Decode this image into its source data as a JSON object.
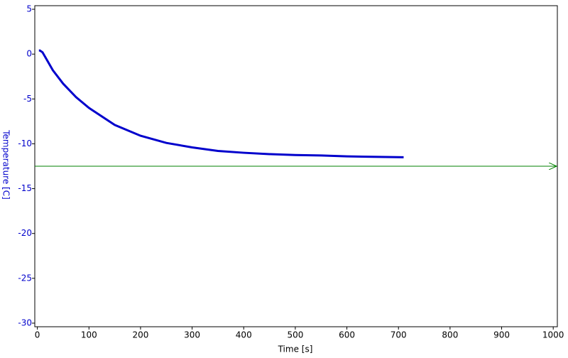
{
  "chart_data": {
    "type": "line",
    "x_label": "Time [s]",
    "y_label": "Temperature [C]",
    "x": [
      3,
      5,
      10,
      20,
      30,
      50,
      75,
      100,
      150,
      200,
      250,
      300,
      350,
      400,
      450,
      500,
      550,
      600,
      650,
      710
    ],
    "values": [
      0.4,
      0.4,
      0.2,
      -0.8,
      -1.8,
      -3.3,
      -4.8,
      -6.0,
      -7.9,
      -9.1,
      -9.9,
      -10.4,
      -10.8,
      -11.0,
      -11.15,
      -11.25,
      -11.3,
      -11.4,
      -11.45,
      -11.5
    ],
    "color": "#0000cc",
    "reference_line": {
      "value": -12.5,
      "color": "#008000"
    },
    "xlim": [
      -5,
      1008
    ],
    "ylim": [
      -30.4,
      5.4
    ],
    "xticks": [
      0,
      100,
      200,
      300,
      400,
      500,
      600,
      700,
      800,
      900,
      1000
    ],
    "yticks": [
      5,
      0,
      -5,
      -10,
      -15,
      -20,
      -25,
      -30
    ],
    "y_tick_color": "#0000cc"
  }
}
